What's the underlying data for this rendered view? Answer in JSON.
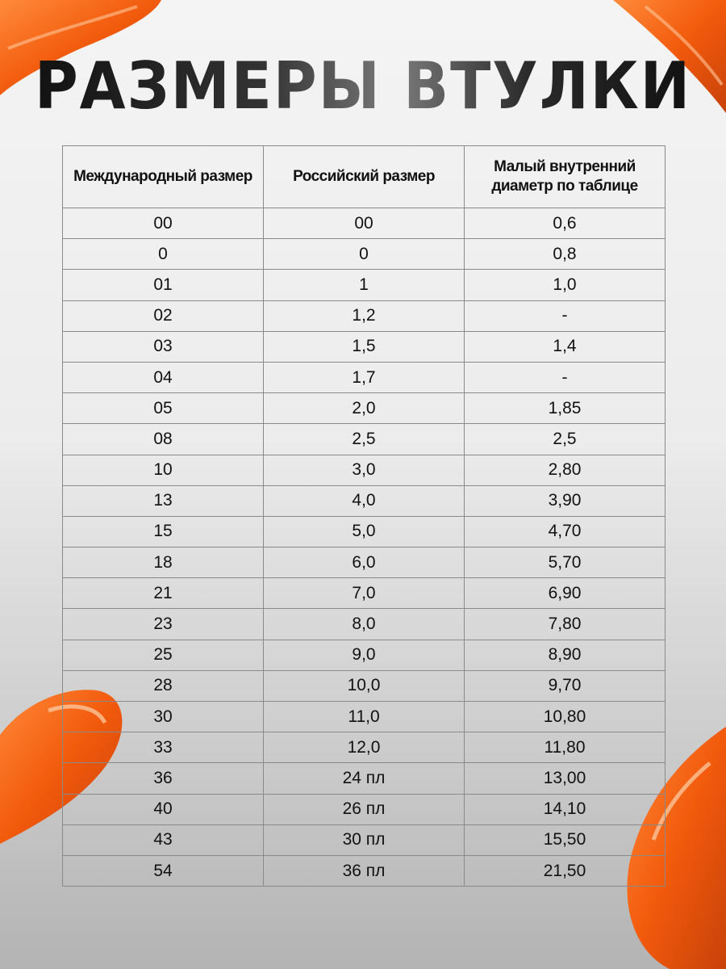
{
  "title": "РАЗМЕРЫ ВТУЛКИ",
  "accent_color": "#f25a0c",
  "table": {
    "headers": [
      "Международный размер",
      "Российский размер",
      "Малый внутренний диаметр по таблице"
    ],
    "rows": [
      [
        "00",
        "00",
        "0,6"
      ],
      [
        "0",
        "0",
        "0,8"
      ],
      [
        "01",
        "1",
        "1,0"
      ],
      [
        "02",
        "1,2",
        "-"
      ],
      [
        "03",
        "1,5",
        "1,4"
      ],
      [
        "04",
        "1,7",
        "-"
      ],
      [
        "05",
        "2,0",
        "1,85"
      ],
      [
        "08",
        "2,5",
        "2,5"
      ],
      [
        "10",
        "3,0",
        "2,80"
      ],
      [
        "13",
        "4,0",
        "3,90"
      ],
      [
        "15",
        "5,0",
        "4,70"
      ],
      [
        "18",
        "6,0",
        "5,70"
      ],
      [
        "21",
        "7,0",
        "6,90"
      ],
      [
        "23",
        "8,0",
        "7,80"
      ],
      [
        "25",
        "9,0",
        "8,90"
      ],
      [
        "28",
        "10,0",
        "9,70"
      ],
      [
        "30",
        "11,0",
        "10,80"
      ],
      [
        "33",
        "12,0",
        "11,80"
      ],
      [
        "36",
        "24 пл",
        "13,00"
      ],
      [
        "40",
        "26 пл",
        "14,10"
      ],
      [
        "43",
        "30 пл",
        "15,50"
      ],
      [
        "54",
        "36 пл",
        "21,50"
      ]
    ]
  }
}
